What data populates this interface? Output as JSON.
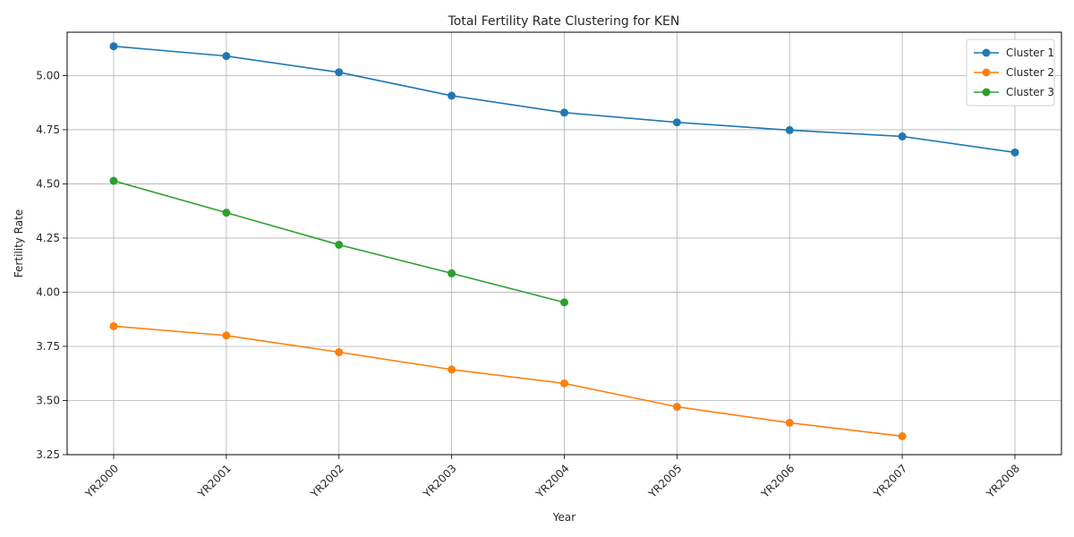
{
  "chart_data": {
    "type": "line",
    "title": "Total Fertility Rate Clustering for KEN",
    "xlabel": "Year",
    "ylabel": "Fertility Rate",
    "categories": [
      "YR2000",
      "YR2001",
      "YR2002",
      "YR2003",
      "YR2004",
      "YR2005",
      "YR2006",
      "YR2007",
      "YR2008"
    ],
    "ylim": [
      3.25,
      5.2
    ],
    "yticks": [
      "3.25",
      "3.50",
      "3.75",
      "4.00",
      "4.25",
      "4.50",
      "4.75",
      "5.00"
    ],
    "grid": true,
    "legend_position": "top-right",
    "series": [
      {
        "name": "Cluster 1",
        "color": "#1f77b4",
        "values": [
          5.135,
          5.09,
          5.015,
          4.907,
          4.829,
          4.784,
          4.748,
          4.719,
          4.645
        ]
      },
      {
        "name": "Cluster 2",
        "color": "#ff7f0e",
        "values": [
          3.843,
          3.8,
          3.723,
          3.643,
          3.579,
          3.471,
          3.397,
          3.335,
          null
        ]
      },
      {
        "name": "Cluster 3",
        "color": "#2ca02c",
        "values": [
          4.514,
          4.367,
          4.219,
          4.087,
          3.953,
          null,
          null,
          null,
          null
        ]
      }
    ]
  }
}
